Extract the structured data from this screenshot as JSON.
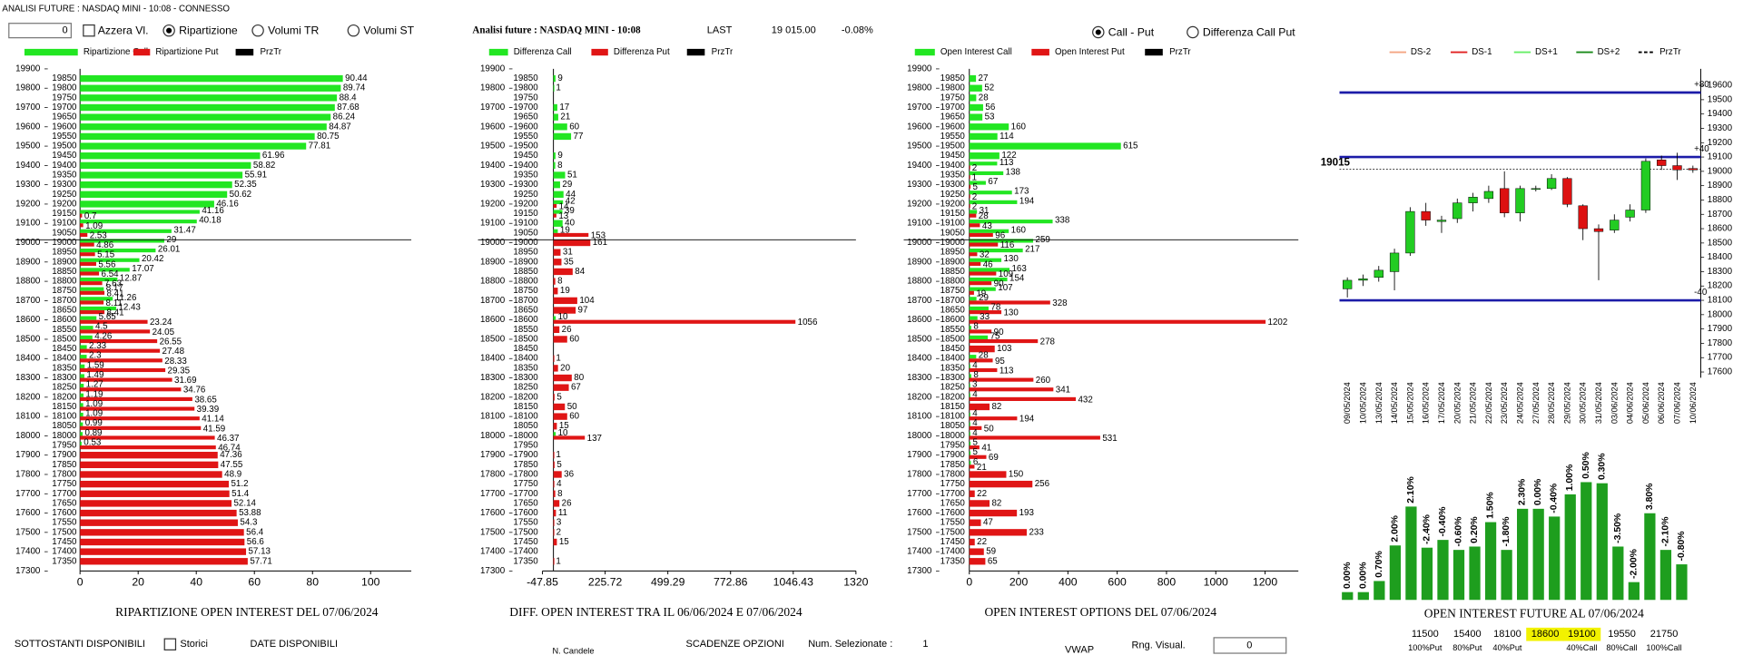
{
  "window_title": "ANALISI FUTURE : NASDAQ MINI - 10:08 - CONNESSO",
  "toolbar": {
    "input_value": 0,
    "reset": {
      "label": "Azzera Vl.",
      "checked": false
    },
    "modes": [
      {
        "label": "Ripartizione",
        "selected": true
      },
      {
        "label": "Volumi TR",
        "selected": false
      },
      {
        "label": "Volumi ST",
        "selected": false
      }
    ]
  },
  "quote": {
    "title": "Analisi future : NASDAQ MINI - 10:08",
    "last_label": "LAST",
    "last": "19 015.00",
    "change": "-0.08%"
  },
  "view_modes": [
    {
      "label": "Call - Put",
      "selected": true
    },
    {
      "label": "Differenza Call Put",
      "selected": false
    }
  ],
  "chart_data": [
    {
      "type": "hbar",
      "title": "RIPARTIZIONE OPEN INTEREST DEL 07/06/2024",
      "strikes": [
        19850,
        19800,
        19750,
        19700,
        19650,
        19600,
        19550,
        19500,
        19450,
        19400,
        19350,
        19300,
        19250,
        19200,
        19150,
        19100,
        19050,
        19000,
        18950,
        18900,
        18850,
        18800,
        18750,
        18700,
        18650,
        18600,
        18550,
        18500,
        18450,
        18400,
        18350,
        18300,
        18250,
        18200,
        18150,
        18100,
        18050,
        18000,
        17950,
        17900,
        17850,
        17800,
        17750,
        17700,
        17650,
        17600,
        17550,
        17500,
        17450,
        17400,
        17350
      ],
      "series": [
        {
          "name": "Ripartizione Call",
          "color": "#22e622",
          "values": [
            90.44,
            89.74,
            88.4,
            87.68,
            86.24,
            84.87,
            80.75,
            77.81,
            61.96,
            58.82,
            55.91,
            52.35,
            50.62,
            46.16,
            41.16,
            40.18,
            31.47,
            29,
            26.01,
            20.42,
            17.07,
            12.87,
            8.17,
            11.26,
            12.43,
            5.65,
            4.5,
            4.26,
            2.33,
            2.3,
            1.59,
            1.49,
            1.27,
            1.19,
            1.09,
            1.09,
            0.99,
            0.89,
            0.53,
            null,
            null,
            null,
            null,
            null,
            null,
            null,
            null,
            null,
            null,
            null,
            null
          ]
        },
        {
          "name": "Ripartizione Put",
          "color": "#e01515",
          "values": [
            null,
            null,
            null,
            null,
            null,
            null,
            null,
            null,
            null,
            null,
            null,
            null,
            null,
            null,
            0.7,
            1.09,
            2.53,
            4.86,
            5.15,
            5.56,
            6.54,
            7.63,
            8.41,
            8.11,
            8.41,
            23.24,
            24.05,
            26.55,
            27.48,
            28.33,
            29.35,
            31.69,
            34.76,
            38.65,
            39.39,
            41.14,
            41.59,
            46.37,
            46.74,
            47.36,
            47.55,
            48.9,
            51.2,
            51.4,
            52.14,
            53.88,
            54.3,
            56.4,
            56.6,
            57.13,
            57.71
          ]
        }
      ],
      "price_legend": {
        "name": "PrzTr",
        "color": "#000000"
      },
      "xlim": [
        0,
        114
      ],
      "xticks": [
        0,
        20,
        40,
        60,
        80,
        100
      ],
      "ylim": [
        17300,
        19900
      ],
      "yticks": [
        19900,
        19800,
        19700,
        19600,
        19500,
        19400,
        19300,
        19200,
        19100,
        19000,
        18900,
        18800,
        18700,
        18600,
        18500,
        18400,
        18300,
        18200,
        18100,
        18000,
        17900,
        17800,
        17700,
        17600,
        17500,
        17400,
        17300
      ]
    },
    {
      "type": "hbar",
      "title": "DIFF. OPEN INTEREST TRA IL 06/06/2024 E 07/06/2024",
      "strikes": [
        19850,
        19800,
        19750,
        19700,
        19650,
        19600,
        19550,
        19500,
        19450,
        19400,
        19350,
        19300,
        19250,
        19200,
        19150,
        19100,
        19050,
        19000,
        18950,
        18900,
        18850,
        18800,
        18750,
        18700,
        18650,
        18600,
        18550,
        18500,
        18450,
        18400,
        18350,
        18300,
        18250,
        18200,
        18150,
        18100,
        18050,
        18000,
        17950,
        17900,
        17850,
        17800,
        17750,
        17700,
        17650,
        17600,
        17550,
        17500,
        17450,
        17400,
        17350
      ],
      "series": [
        {
          "name": "Differenza Call",
          "color": "#22e622",
          "values": [
            9,
            1,
            null,
            17,
            21,
            60,
            77,
            null,
            9,
            8,
            51,
            29,
            44,
            42,
            39,
            40,
            19,
            null,
            null,
            null,
            null,
            null,
            null,
            null,
            null,
            10,
            null,
            null,
            null,
            null,
            null,
            null,
            null,
            null,
            null,
            null,
            null,
            10,
            null,
            null,
            null,
            null,
            null,
            null,
            null,
            null,
            null,
            null,
            null,
            null,
            null
          ]
        },
        {
          "name": "Differenza Put",
          "color": "#e01515",
          "values": [
            null,
            null,
            null,
            null,
            null,
            null,
            null,
            null,
            null,
            null,
            null,
            null,
            null,
            14,
            13,
            null,
            153,
            161,
            31,
            35,
            84,
            8,
            19,
            104,
            97,
            1056,
            26,
            60,
            null,
            1,
            20,
            80,
            67,
            5,
            50,
            60,
            15,
            137,
            null,
            1,
            5,
            36,
            4,
            8,
            26,
            11,
            3,
            2,
            15,
            null,
            1
          ]
        }
      ],
      "price_legend": {
        "name": "PrzTr",
        "color": "#000000"
      },
      "xlim": [
        -47.85,
        1320
      ],
      "xticks": [
        -47.85,
        225.72,
        499.29,
        772.86,
        1046.43,
        1320
      ],
      "ylim": [
        17300,
        19900
      ],
      "yticks": [
        19900,
        19800,
        19700,
        19600,
        19500,
        19400,
        19300,
        19200,
        19100,
        19000,
        18900,
        18800,
        18700,
        18600,
        18500,
        18400,
        18300,
        18200,
        18100,
        18000,
        17900,
        17800,
        17700,
        17600,
        17500,
        17400,
        17300
      ]
    },
    {
      "type": "hbar",
      "title": "OPEN INTEREST OPTIONS DEL 07/06/2024",
      "strikes": [
        19850,
        19800,
        19750,
        19700,
        19650,
        19600,
        19550,
        19500,
        19450,
        19400,
        19350,
        19300,
        19250,
        19200,
        19150,
        19100,
        19050,
        19000,
        18950,
        18900,
        18850,
        18800,
        18750,
        18700,
        18650,
        18600,
        18550,
        18500,
        18450,
        18400,
        18350,
        18300,
        18250,
        18200,
        18150,
        18100,
        18050,
        18000,
        17950,
        17900,
        17850,
        17800,
        17750,
        17700,
        17650,
        17600,
        17550,
        17500,
        17450,
        17400,
        17350
      ],
      "series": [
        {
          "name": "Open Interest Call",
          "color": "#22e622",
          "values": [
            27,
            52,
            28,
            56,
            53,
            160,
            114,
            615,
            122,
            113,
            138,
            67,
            173,
            194,
            31,
            338,
            160,
            259,
            217,
            130,
            163,
            154,
            107,
            29,
            78,
            33,
            8,
            75,
            null,
            28,
            4,
            8,
            3,
            4,
            null,
            4,
            4,
            4,
            5,
            5,
            6,
            null,
            null,
            null,
            null,
            null,
            null,
            null,
            null,
            null,
            null
          ]
        },
        {
          "name": "Open Interest Put",
          "color": "#e01515",
          "values": [
            null,
            null,
            null,
            null,
            null,
            null,
            null,
            null,
            null,
            2,
            1,
            5,
            2,
            2,
            28,
            43,
            96,
            116,
            32,
            46,
            109,
            90,
            19,
            328,
            130,
            1202,
            90,
            278,
            103,
            95,
            113,
            260,
            341,
            432,
            82,
            194,
            50,
            531,
            41,
            69,
            21,
            150,
            256,
            22,
            82,
            193,
            47,
            233,
            22,
            59,
            65
          ]
        }
      ],
      "price_legend": {
        "name": "PrzTr",
        "color": "#000000"
      },
      "xlim": [
        0,
        1335
      ],
      "xticks": [
        0,
        200,
        400,
        600,
        800,
        1000,
        1200
      ],
      "ylim": [
        17300,
        19900
      ],
      "yticks": [
        19900,
        19800,
        19700,
        19600,
        19500,
        19400,
        19300,
        19200,
        19100,
        19000,
        18900,
        18800,
        18700,
        18600,
        18500,
        18400,
        18300,
        18200,
        18100,
        18000,
        17900,
        17800,
        17700,
        17600,
        17500,
        17400,
        17300
      ]
    },
    {
      "type": "candlestick",
      "x": [
        "09/05/2024",
        "10/05/2024",
        "13/05/2024",
        "14/05/2024",
        "15/05/2024",
        "16/05/2024",
        "17/05/2024",
        "20/05/2024",
        "21/05/2024",
        "22/05/2024",
        "23/05/2024",
        "24/05/2024",
        "27/05/2024",
        "28/05/2024",
        "29/05/2024",
        "30/05/2024",
        "31/05/2024",
        "03/06/2024",
        "04/06/2024",
        "05/06/2024",
        "06/06/2024",
        "07/06/2024",
        "10/06/2024"
      ],
      "open": [
        18180,
        18240,
        18260,
        18300,
        18430,
        18720,
        18650,
        18670,
        18780,
        18810,
        18880,
        18710,
        18880,
        18880,
        18950,
        18760,
        18600,
        18590,
        18680,
        18730,
        19080,
        19040,
        19020
      ],
      "high": [
        18260,
        18280,
        18340,
        18460,
        18750,
        18780,
        18690,
        18810,
        18850,
        18900,
        19000,
        18900,
        18900,
        18980,
        18960,
        18770,
        18630,
        18700,
        18770,
        19090,
        19110,
        19130,
        19040
      ],
      "low": [
        18120,
        18200,
        18230,
        18170,
        18410,
        18620,
        18570,
        18640,
        18720,
        18780,
        18680,
        18650,
        18860,
        18870,
        18750,
        18520,
        18240,
        18570,
        18650,
        18710,
        19010,
        18940,
        18990
      ],
      "close": [
        18240,
        18250,
        18310,
        18430,
        18720,
        18660,
        18660,
        18780,
        18820,
        18860,
        18710,
        18880,
        18880,
        18950,
        18770,
        18600,
        18580,
        18660,
        18730,
        19070,
        19040,
        19010,
        19010
      ],
      "up_color": "#22cc22",
      "down_color": "#dd1111",
      "legend": [
        {
          "name": "DS-2",
          "color": "#f4a582"
        },
        {
          "name": "DS-1",
          "color": "#e02020"
        },
        {
          "name": "DS+1",
          "color": "#66ee66"
        },
        {
          "name": "DS+2",
          "color": "#1a8a1a"
        },
        {
          "name": "PrzTr",
          "color": "#000000",
          "dash": true
        }
      ],
      "levels": [
        {
          "value": 19550,
          "label": "+80"
        },
        {
          "value": 19100,
          "label": "+40"
        },
        {
          "value": 18100,
          "label": "-40"
        }
      ],
      "level_color": "#1c1ca8",
      "last_price": 19015,
      "ylim": [
        17560,
        19715
      ],
      "yticks": [
        19600,
        19500,
        19400,
        19300,
        19200,
        19100,
        19000,
        18900,
        18800,
        18700,
        18600,
        18500,
        18400,
        18300,
        18200,
        18100,
        18000,
        17900,
        17800,
        17700,
        17600
      ]
    },
    {
      "type": "bar",
      "title": "OPEN INTEREST FUTURE AL 07/06/2024",
      "values": [
        7,
        7,
        17,
        49,
        84,
        47,
        54,
        45,
        48,
        70,
        45,
        82,
        82,
        75,
        95,
        106,
        105,
        48,
        16,
        78,
        45,
        32
      ],
      "changes": [
        0,
        0,
        0.7,
        2,
        2.1,
        -2.4,
        -0.4,
        -0.6,
        0.2,
        1.5,
        -1.8,
        2.3,
        0,
        -0.4,
        1,
        0.5,
        0.3,
        -3.5,
        -2,
        3.8,
        -2.1,
        -0.8
      ],
      "change_labels": [
        "0.00%",
        "0.00%",
        "0.70%",
        "2.00%",
        "2.10%",
        "-2.40%",
        "-0.40%",
        "-0.60%",
        "0.20%",
        "1.50%",
        "-1.80%",
        "2.30%",
        "0.00%",
        "-0.40%",
        "1.00%",
        "0.50%",
        "0.30%",
        "-3.50%",
        "-2.00%",
        "3.80%",
        "-2.10%",
        "-0.80%"
      ],
      "color": "#1e9e1e",
      "ylim": [
        0,
        115
      ],
      "highlight_color": "#f2f200",
      "strike_levels": [
        {
          "strike": 11500,
          "label": "100%Put"
        },
        {
          "strike": 15400,
          "label": "80%Put"
        },
        {
          "strike": 18100,
          "label": "40%Put"
        },
        {
          "strike": 18600,
          "highlight": true
        },
        {
          "strike": 19100,
          "label": "40%Call",
          "highlight": true
        },
        {
          "strike": 19550,
          "label": "80%Call"
        },
        {
          "strike": 21750,
          "label": "100%Call"
        }
      ]
    }
  ],
  "footer": {
    "underlyings": "SOTTOSTANTI DISPONIBILI",
    "history": {
      "label": "Storici",
      "checked": false
    },
    "dates": "DATE DISPONIBILI",
    "candles": "N. Candele",
    "expiries": "SCADENZE OPZIONI",
    "selected_label": "Num. Selezionate :",
    "selected_count": 1,
    "vwap": "VWAP",
    "range_label": "Rng. Visual.",
    "range_value": 0
  }
}
